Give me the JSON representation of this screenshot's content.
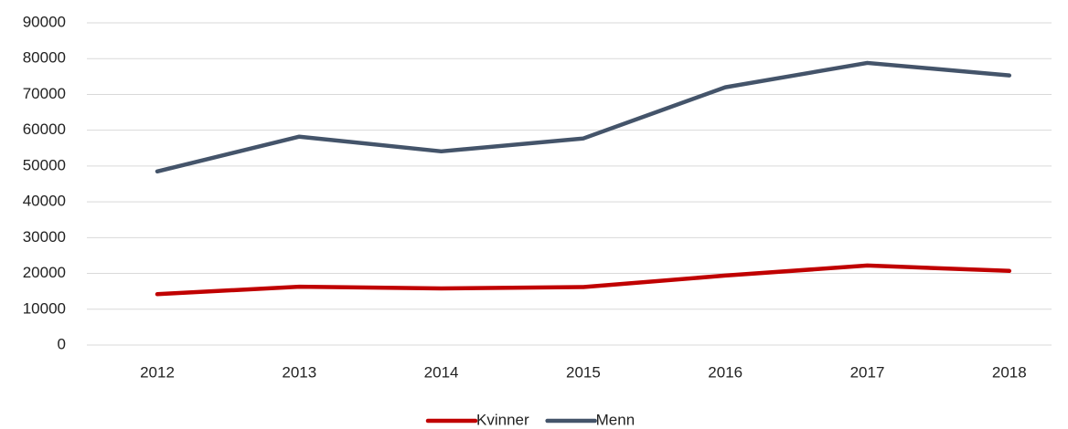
{
  "chart_data": {
    "type": "line",
    "categories": [
      "2012",
      "2013",
      "2014",
      "2015",
      "2016",
      "2017",
      "2018"
    ],
    "series": [
      {
        "name": "Kvinner",
        "color": "#c00000",
        "values": [
          14200,
          16300,
          15800,
          16200,
          19400,
          22200,
          20700
        ]
      },
      {
        "name": "Menn",
        "color": "#44546a",
        "values": [
          48500,
          58200,
          54100,
          57700,
          72000,
          78800,
          75300
        ]
      }
    ],
    "ylim": [
      0,
      90000
    ],
    "yticks": [
      0,
      10000,
      20000,
      30000,
      40000,
      50000,
      60000,
      70000,
      80000,
      90000
    ],
    "grid": true,
    "legend": "bottom"
  }
}
